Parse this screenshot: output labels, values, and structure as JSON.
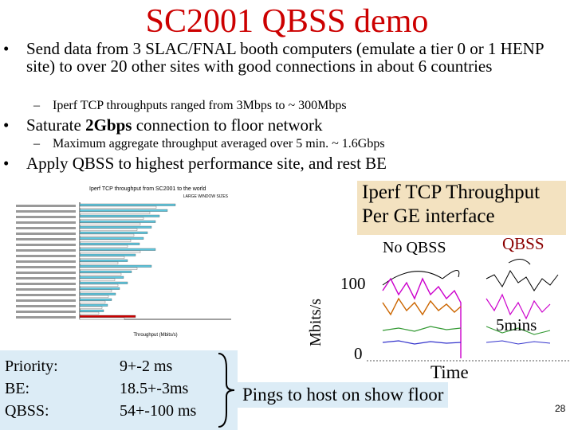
{
  "slide": {
    "title": "SC2001 QBSS demo",
    "bullets": [
      {
        "text": "Send data from 3 SLAC/FNAL booth computers (emulate a tier  0 or 1 HENP site) to over 20 other sites with good connections in about 6 countries",
        "sub": [
          "Iperf TCP throughputs ranged from 3Mbps to ~ 300Mbps"
        ]
      },
      {
        "parts": [
          "Saturate ",
          "2Gbps",
          " connection to floor network"
        ],
        "sub": [
          "Maximum aggregate throughput averaged over 5 min. ~ 1.6Gbps"
        ]
      },
      {
        "text": "Apply QBSS to highest performance site, and rest BE",
        "sub": []
      }
    ],
    "bar_figure": {
      "title": "Iperf TCP throughput from SC2001 to the world",
      "note": "LARGE WINDOW SIZES",
      "x_label": "Throughput (Mbits/s)"
    },
    "throughput_figure": {
      "title": "Iperf TCP Throughput Per GE interface",
      "no_qbss": "No QBSS",
      "qbss": "QBSS",
      "y_label": "Mbits/s",
      "y_high": "100",
      "y_low": "0",
      "duration": "5mins",
      "x_label": "Time"
    },
    "pings": {
      "caption": "Pings to host on show floor",
      "rows": [
        [
          "Priority:",
          "9+-2 ms"
        ],
        [
          "BE:",
          "18.5+-3ms"
        ],
        [
          "QBSS:",
          "54+-100 ms"
        ]
      ]
    },
    "page_number": "28"
  }
}
